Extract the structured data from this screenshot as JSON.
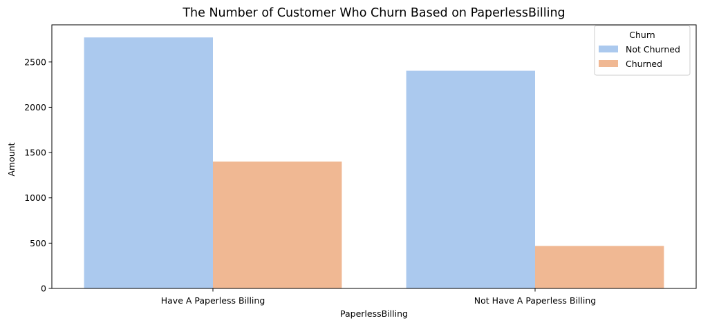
{
  "chart_data": {
    "type": "bar",
    "title": "The Number of Customer Who Churn Based on PaperlessBilling",
    "xlabel": "PaperlessBilling",
    "ylabel": "Amount",
    "categories": [
      "Have A Paperless Billing",
      "Not Have A Paperless Billing"
    ],
    "series": [
      {
        "name": "Not Churned",
        "color": "#abc9ee",
        "values": [
          2771,
          2403
        ]
      },
      {
        "name": "Churned",
        "color": "#f0b893",
        "values": [
          1400,
          469
        ]
      }
    ],
    "ylim": [
      0,
      2910
    ],
    "yticks": [
      0,
      500,
      1000,
      1500,
      2000,
      2500
    ],
    "grid": false,
    "legend": {
      "title": "Churn",
      "placement": "top-right"
    }
  }
}
